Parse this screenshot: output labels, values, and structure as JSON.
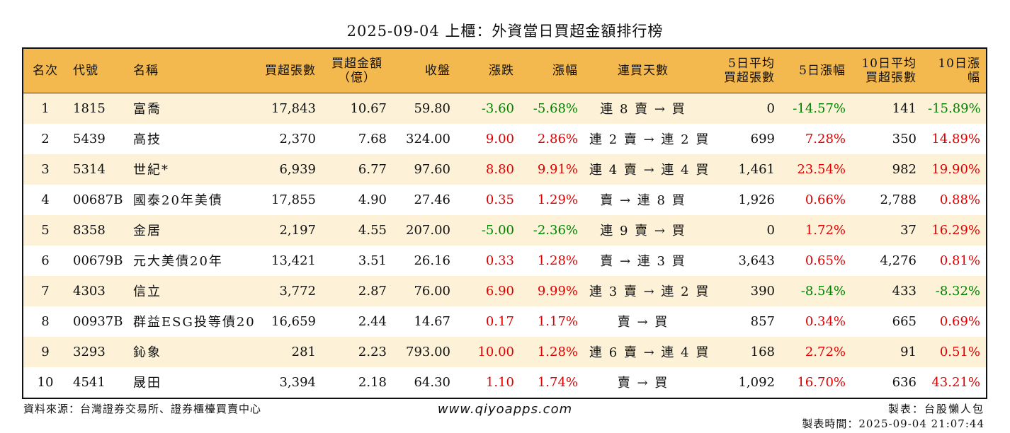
{
  "title": "2025-09-04 上櫃：外資當日買超金額排行榜",
  "headers": {
    "rank": "名次",
    "code": "代號",
    "name": "名稱",
    "net_shares": "買超張數",
    "net_amount_1": "買超金額",
    "net_amount_2": "（億）",
    "close": "收盤",
    "change": "漲跌",
    "pct": "漲幅",
    "streak": "連買天數",
    "avg5_1": "5日平均",
    "avg5_2": "買超張數",
    "pct5": "5日漲幅",
    "avg10_1": "10日平均",
    "avg10_2": "買超張數",
    "pct10": "10日漲幅"
  },
  "rows": [
    {
      "rank": "1",
      "code": "1815",
      "name": "富喬",
      "net_shares": "17,843",
      "net_amount": "10.67",
      "close": "59.80",
      "change": "-3.60",
      "change_dir": "down",
      "pct": "-5.68%",
      "pct_dir": "down",
      "streak": "連 8 賣 → 買",
      "avg5": "0",
      "pct5": "-14.57%",
      "pct5_dir": "down",
      "avg10": "141",
      "pct10": "-15.89%",
      "pct10_dir": "down"
    },
    {
      "rank": "2",
      "code": "5439",
      "name": "高技",
      "net_shares": "2,370",
      "net_amount": "7.68",
      "close": "324.00",
      "change": "9.00",
      "change_dir": "up",
      "pct": "2.86%",
      "pct_dir": "up",
      "streak": "連 2 賣 → 連 2 買",
      "avg5": "699",
      "pct5": "7.28%",
      "pct5_dir": "up",
      "avg10": "350",
      "pct10": "14.89%",
      "pct10_dir": "up"
    },
    {
      "rank": "3",
      "code": "5314",
      "name": "世紀*",
      "net_shares": "6,939",
      "net_amount": "6.77",
      "close": "97.60",
      "change": "8.80",
      "change_dir": "up",
      "pct": "9.91%",
      "pct_dir": "up",
      "streak": "連 4 賣 → 連 4 買",
      "avg5": "1,461",
      "pct5": "23.54%",
      "pct5_dir": "up",
      "avg10": "982",
      "pct10": "19.90%",
      "pct10_dir": "up"
    },
    {
      "rank": "4",
      "code": "00687B",
      "name": "國泰20年美債",
      "net_shares": "17,855",
      "net_amount": "4.90",
      "close": "27.46",
      "change": "0.35",
      "change_dir": "up",
      "pct": "1.29%",
      "pct_dir": "up",
      "streak": "賣 → 連 8 買",
      "avg5": "1,926",
      "pct5": "0.66%",
      "pct5_dir": "up",
      "avg10": "2,788",
      "pct10": "0.88%",
      "pct10_dir": "up"
    },
    {
      "rank": "5",
      "code": "8358",
      "name": "金居",
      "net_shares": "2,197",
      "net_amount": "4.55",
      "close": "207.00",
      "change": "-5.00",
      "change_dir": "down",
      "pct": "-2.36%",
      "pct_dir": "down",
      "streak": "連 9 賣 → 買",
      "avg5": "0",
      "pct5": "1.72%",
      "pct5_dir": "up",
      "avg10": "37",
      "pct10": "16.29%",
      "pct10_dir": "up"
    },
    {
      "rank": "6",
      "code": "00679B",
      "name": "元大美債20年",
      "net_shares": "13,421",
      "net_amount": "3.51",
      "close": "26.16",
      "change": "0.33",
      "change_dir": "up",
      "pct": "1.28%",
      "pct_dir": "up",
      "streak": "賣 → 連 3 買",
      "avg5": "3,643",
      "pct5": "0.65%",
      "pct5_dir": "up",
      "avg10": "4,276",
      "pct10": "0.81%",
      "pct10_dir": "up"
    },
    {
      "rank": "7",
      "code": "4303",
      "name": "信立",
      "net_shares": "3,772",
      "net_amount": "2.87",
      "close": "76.00",
      "change": "6.90",
      "change_dir": "up",
      "pct": "9.99%",
      "pct_dir": "up",
      "streak": "連 3 賣 → 連 2 買",
      "avg5": "390",
      "pct5": "-8.54%",
      "pct5_dir": "down",
      "avg10": "433",
      "pct10": "-8.32%",
      "pct10_dir": "down"
    },
    {
      "rank": "8",
      "code": "00937B",
      "name": "群益ESG投等債20",
      "net_shares": "16,659",
      "net_amount": "2.44",
      "close": "14.67",
      "change": "0.17",
      "change_dir": "up",
      "pct": "1.17%",
      "pct_dir": "up",
      "streak": "賣 → 買",
      "avg5": "857",
      "pct5": "0.34%",
      "pct5_dir": "up",
      "avg10": "665",
      "pct10": "0.69%",
      "pct10_dir": "up"
    },
    {
      "rank": "9",
      "code": "3293",
      "name": "鈊象",
      "net_shares": "281",
      "net_amount": "2.23",
      "close": "793.00",
      "change": "10.00",
      "change_dir": "up",
      "pct": "1.28%",
      "pct_dir": "up",
      "streak": "連 6 賣 → 連 4 買",
      "avg5": "168",
      "pct5": "2.72%",
      "pct5_dir": "up",
      "avg10": "91",
      "pct10": "0.51%",
      "pct10_dir": "up"
    },
    {
      "rank": "10",
      "code": "4541",
      "name": "晟田",
      "net_shares": "3,394",
      "net_amount": "2.18",
      "close": "64.30",
      "change": "1.10",
      "change_dir": "up",
      "pct": "1.74%",
      "pct_dir": "up",
      "streak": "賣 → 買",
      "avg5": "1,092",
      "pct5": "16.70%",
      "pct5_dir": "up",
      "avg10": "636",
      "pct10": "43.21%",
      "pct10_dir": "up"
    }
  ],
  "colors": {
    "up": "#e00000",
    "down": "#008000",
    "header_bg": "#f4b94e",
    "row_alt": "#fdf2d8"
  },
  "footer": {
    "source": "資料來源：台灣證券交易所、證券櫃檯買賣中心",
    "website": "www.qiyoapps.com",
    "maker": "製表：台股懶人包",
    "time": "製表時間：2025-09-04 21:07:44"
  }
}
